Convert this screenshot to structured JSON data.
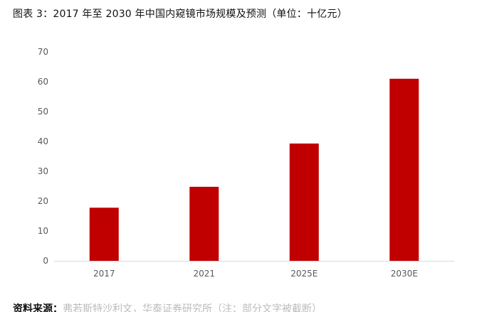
{
  "figure": {
    "title": "图表 3：2017 年至 2030 年中国内窥镜市场规模及预测（单位：十亿元）",
    "source_label": "资料来源：",
    "source_text": "弗若斯特沙利文，华泰证券研究所（注：部分文字被截断）"
  },
  "colors": {
    "bar": "#c00000",
    "axis": "#d9d9d9",
    "tick_text": "#595959"
  },
  "chart_data": {
    "type": "bar",
    "title": "图表 3：2017 年至 2030 年中国内窥镜市场规模及预测（单位：十亿元）",
    "categories": [
      "2017",
      "2021",
      "2025E",
      "2030E"
    ],
    "values": [
      17.8,
      24.8,
      39.3,
      61.0
    ],
    "ylim": [
      0,
      70
    ],
    "yticks": [
      0,
      10,
      20,
      30,
      40,
      50,
      60,
      70
    ],
    "xlabel": "",
    "ylabel": "",
    "grid": false,
    "legend": "none"
  }
}
